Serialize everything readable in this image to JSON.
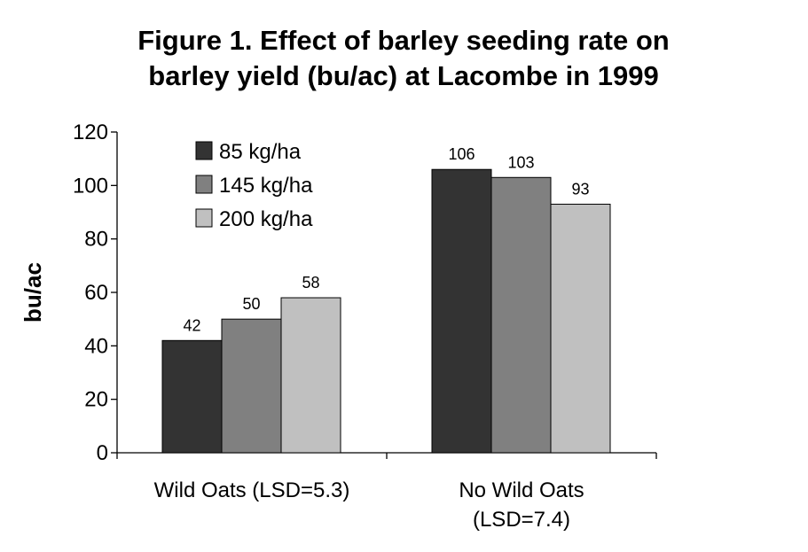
{
  "chart_data": {
    "type": "bar",
    "title_lines": [
      "Figure 1. Effect of barley seeding rate on",
      "barley yield (bu/ac) at Lacombe in 1999"
    ],
    "ylabel": "bu/ac",
    "xlabel": "",
    "ylim": [
      0,
      120
    ],
    "yticks": [
      0,
      20,
      40,
      60,
      80,
      100,
      120
    ],
    "categories": [
      [
        "Wild Oats (LSD=5.3)"
      ],
      [
        "No Wild Oats",
        "(LSD=7.4)"
      ]
    ],
    "series": [
      {
        "name": "85 kg/ha",
        "color": "#333333",
        "values": [
          42,
          106
        ]
      },
      {
        "name": "145 kg/ha",
        "color": "#808080",
        "values": [
          50,
          103
        ]
      },
      {
        "name": "200 kg/ha",
        "color": "#c0c0c0",
        "values": [
          58,
          93
        ]
      }
    ],
    "data_labels": true,
    "legend_position": "top-left inside plot",
    "grid": false
  }
}
